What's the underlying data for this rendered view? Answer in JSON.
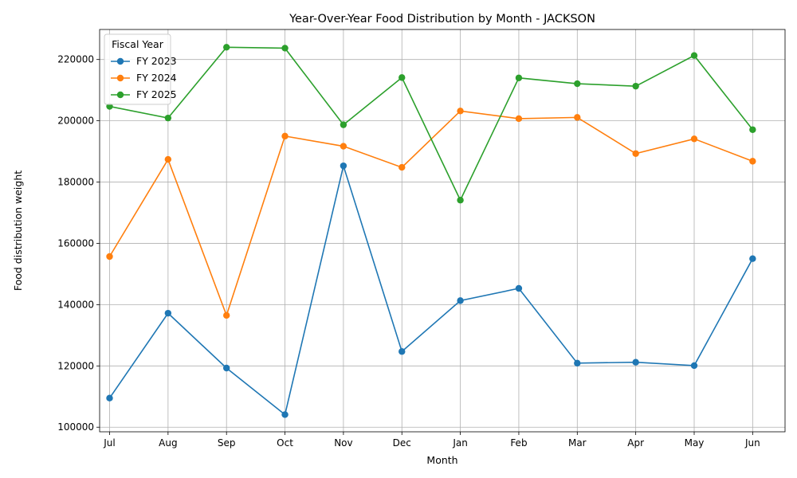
{
  "chart_data": {
    "type": "line",
    "title": "Year-Over-Year Food Distribution by Month - JACKSON",
    "xlabel": "Month",
    "ylabel": "Food distribution weight",
    "categories": [
      "Jul",
      "Aug",
      "Sep",
      "Oct",
      "Nov",
      "Dec",
      "Jan",
      "Feb",
      "Mar",
      "Apr",
      "May",
      "Jun"
    ],
    "ylim": [
      98500,
      229800
    ],
    "yticks": [
      100000,
      120000,
      140000,
      160000,
      180000,
      200000,
      220000
    ],
    "ytick_labels": [
      "100000",
      "120000",
      "140000",
      "160000",
      "180000",
      "200000",
      "220000"
    ],
    "grid": true,
    "legend": {
      "title": "Fiscal Year",
      "placement": "top-left"
    },
    "series": [
      {
        "name": "FY 2023",
        "color": "#1f77b4",
        "values": [
          109500,
          137200,
          119300,
          104100,
          185300,
          124700,
          141300,
          145300,
          120900,
          121200,
          120100,
          155000
        ]
      },
      {
        "name": "FY 2024",
        "color": "#ff7f0e",
        "values": [
          155700,
          187400,
          136500,
          195000,
          191700,
          184800,
          203200,
          200700,
          201100,
          189300,
          194100,
          186800
        ]
      },
      {
        "name": "FY 2025",
        "color": "#2ca02c",
        "values": [
          204700,
          200900,
          224000,
          223700,
          198700,
          214100,
          174100,
          214000,
          212100,
          211300,
          221300,
          197100
        ]
      }
    ]
  }
}
